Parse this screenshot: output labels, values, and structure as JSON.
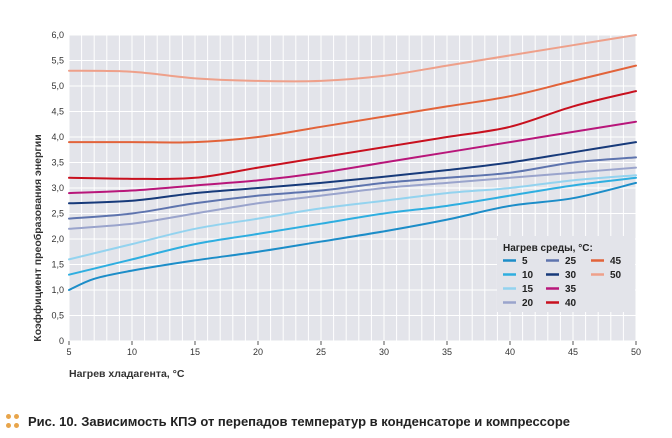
{
  "chart_data": {
    "type": "line",
    "xlabel": "Нагрев хладагента, °С",
    "ylabel": "Коэффициент преобразования энергии",
    "xlim": [
      5,
      50
    ],
    "ylim": [
      0,
      6
    ],
    "x_ticks": [
      "5",
      "10",
      "15",
      "20",
      "25",
      "30",
      "35",
      "40",
      "45",
      "50"
    ],
    "y_ticks": [
      "0",
      "0,5",
      "1,0",
      "1,5",
      "2,0",
      "2,5",
      "3,0",
      "3,5",
      "4,0",
      "4,5",
      "5,0",
      "5,5",
      "6,0"
    ],
    "grid": true,
    "legend_title": "Нагрев среды, °С:",
    "legend_position": "bottom-right",
    "series": [
      {
        "name": "5",
        "color": "#1c8dc8",
        "points": [
          [
            5,
            1.0
          ],
          [
            7,
            1.22
          ],
          [
            10,
            1.38
          ],
          [
            15,
            1.58
          ],
          [
            20,
            1.75
          ],
          [
            25,
            1.95
          ],
          [
            30,
            2.15
          ],
          [
            35,
            2.38
          ],
          [
            40,
            2.65
          ],
          [
            45,
            2.8
          ],
          [
            50,
            3.1
          ]
        ]
      },
      {
        "name": "10",
        "color": "#2eaee0",
        "points": [
          [
            5,
            1.3
          ],
          [
            10,
            1.6
          ],
          [
            15,
            1.9
          ],
          [
            20,
            2.1
          ],
          [
            25,
            2.3
          ],
          [
            30,
            2.5
          ],
          [
            35,
            2.65
          ],
          [
            40,
            2.85
          ],
          [
            45,
            3.05
          ],
          [
            50,
            3.2
          ]
        ]
      },
      {
        "name": "15",
        "color": "#93d3ef",
        "points": [
          [
            5,
            1.6
          ],
          [
            10,
            1.9
          ],
          [
            15,
            2.2
          ],
          [
            20,
            2.4
          ],
          [
            25,
            2.6
          ],
          [
            30,
            2.75
          ],
          [
            35,
            2.9
          ],
          [
            40,
            3.0
          ],
          [
            45,
            3.15
          ],
          [
            50,
            3.25
          ]
        ]
      },
      {
        "name": "20",
        "color": "#9aa4cc",
        "points": [
          [
            5,
            2.2
          ],
          [
            10,
            2.3
          ],
          [
            15,
            2.5
          ],
          [
            20,
            2.7
          ],
          [
            25,
            2.85
          ],
          [
            30,
            3.0
          ],
          [
            35,
            3.1
          ],
          [
            40,
            3.2
          ],
          [
            45,
            3.3
          ],
          [
            50,
            3.4
          ]
        ]
      },
      {
        "name": "25",
        "color": "#5e74ae",
        "points": [
          [
            5,
            2.4
          ],
          [
            10,
            2.5
          ],
          [
            15,
            2.7
          ],
          [
            20,
            2.85
          ],
          [
            25,
            2.95
          ],
          [
            30,
            3.1
          ],
          [
            35,
            3.2
          ],
          [
            40,
            3.3
          ],
          [
            45,
            3.5
          ],
          [
            50,
            3.6
          ]
        ]
      },
      {
        "name": "30",
        "color": "#173a7a",
        "points": [
          [
            5,
            2.7
          ],
          [
            10,
            2.75
          ],
          [
            15,
            2.9
          ],
          [
            20,
            3.0
          ],
          [
            25,
            3.1
          ],
          [
            30,
            3.22
          ],
          [
            35,
            3.35
          ],
          [
            40,
            3.5
          ],
          [
            45,
            3.7
          ],
          [
            50,
            3.9
          ]
        ]
      },
      {
        "name": "35",
        "color": "#b8167a",
        "points": [
          [
            5,
            2.9
          ],
          [
            10,
            2.95
          ],
          [
            15,
            3.05
          ],
          [
            20,
            3.15
          ],
          [
            25,
            3.3
          ],
          [
            30,
            3.5
          ],
          [
            35,
            3.7
          ],
          [
            40,
            3.9
          ],
          [
            45,
            4.1
          ],
          [
            50,
            4.3
          ]
        ]
      },
      {
        "name": "40",
        "color": "#c8101e",
        "points": [
          [
            5,
            3.2
          ],
          [
            10,
            3.18
          ],
          [
            15,
            3.2
          ],
          [
            20,
            3.4
          ],
          [
            25,
            3.6
          ],
          [
            30,
            3.8
          ],
          [
            35,
            4.0
          ],
          [
            40,
            4.2
          ],
          [
            45,
            4.6
          ],
          [
            50,
            4.9
          ]
        ]
      },
      {
        "name": "45",
        "color": "#e2633a",
        "points": [
          [
            5,
            3.9
          ],
          [
            10,
            3.9
          ],
          [
            15,
            3.9
          ],
          [
            20,
            4.0
          ],
          [
            25,
            4.2
          ],
          [
            30,
            4.4
          ],
          [
            35,
            4.6
          ],
          [
            40,
            4.8
          ],
          [
            45,
            5.1
          ],
          [
            50,
            5.4
          ]
        ]
      },
      {
        "name": "50",
        "color": "#eea08a",
        "points": [
          [
            5,
            5.3
          ],
          [
            10,
            5.28
          ],
          [
            15,
            5.15
          ],
          [
            20,
            5.1
          ],
          [
            25,
            5.1
          ],
          [
            30,
            5.2
          ],
          [
            35,
            5.4
          ],
          [
            40,
            5.6
          ],
          [
            45,
            5.8
          ],
          [
            50,
            6.0
          ]
        ]
      }
    ]
  },
  "caption": {
    "prefix": "Рис. 10.",
    "text": "Зависимость КПЭ от перепадов температур в конденсаторе и компрессоре"
  }
}
